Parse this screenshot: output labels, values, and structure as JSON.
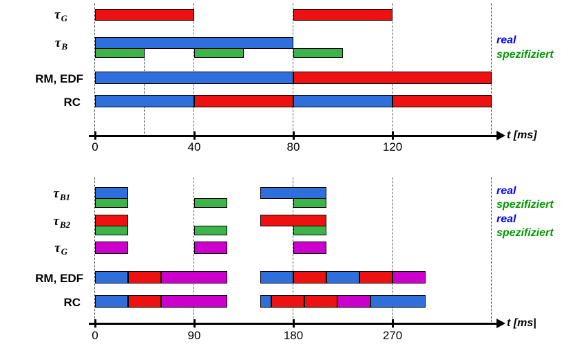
{
  "colors": {
    "red": "#ee1111",
    "blue": "#2e6fdb",
    "green": "#3cb44a",
    "magenta": "#cc00cc",
    "axis": "#000000",
    "real_label": "#0000ff",
    "spez_label": "#009900"
  },
  "diagrams": [
    {
      "id": "top",
      "axis": {
        "ticks_ms": [
          0,
          40,
          80,
          120
        ],
        "tick_labels": [
          "0",
          "40",
          "80",
          "120"
        ],
        "unit_label": "t [ms]"
      },
      "gridlines_ms": [
        0,
        40,
        80,
        120,
        160
      ],
      "minor_gridlines_ms": [
        20
      ],
      "legend": [
        {
          "text": "real",
          "color_key": "real_label"
        },
        {
          "text": "spezifiziert",
          "color_key": "spez_label"
        }
      ],
      "rows": [
        {
          "id": "tau-g",
          "label": {
            "base": "τ",
            "sub": "G"
          },
          "bars": [
            {
              "start": 0,
              "end": 40,
              "color": "red"
            },
            {
              "start": 80,
              "end": 120,
              "color": "red"
            }
          ]
        },
        {
          "id": "tau-b",
          "label": {
            "base": "τ",
            "sub": "B"
          },
          "bars": [
            {
              "start": 0,
              "end": 80,
              "color": "blue"
            }
          ],
          "spec_bars": [
            {
              "start": 0,
              "end": 20,
              "color": "green"
            },
            {
              "start": 40,
              "end": 60,
              "color": "green"
            },
            {
              "start": 80,
              "end": 100,
              "color": "green"
            }
          ]
        },
        {
          "id": "rm-edf",
          "label": {
            "text": "RM, EDF"
          },
          "bars": [
            {
              "start": 0,
              "end": 80,
              "color": "blue"
            },
            {
              "start": 80,
              "end": 160,
              "color": "red"
            }
          ]
        },
        {
          "id": "rc",
          "label": {
            "text": "RC"
          },
          "bars": [
            {
              "start": 0,
              "end": 40,
              "color": "blue"
            },
            {
              "start": 40,
              "end": 80,
              "color": "red"
            },
            {
              "start": 80,
              "end": 120,
              "color": "blue"
            },
            {
              "start": 120,
              "end": 160,
              "color": "red"
            }
          ]
        }
      ]
    },
    {
      "id": "bottom",
      "axis": {
        "ticks_ms": [
          0,
          90,
          180,
          270
        ],
        "tick_labels": [
          "0",
          "90",
          "180",
          "270"
        ],
        "unit_label": "t [ms|"
      },
      "gridlines_ms": [
        0,
        90,
        180,
        270,
        360
      ],
      "minor_gridlines_ms": [],
      "legend": [
        {
          "text": "real",
          "color_key": "real_label"
        },
        {
          "text": "spezifiziert",
          "color_key": "spez_label"
        },
        {
          "text": "real",
          "color_key": "real_label"
        },
        {
          "text": "spezifiziert",
          "color_key": "spez_label"
        }
      ],
      "rows": [
        {
          "id": "tau-b1",
          "label": {
            "base": "τ",
            "sub": "B1"
          },
          "bars": [
            {
              "start": 0,
              "end": 30,
              "color": "blue"
            },
            {
              "start": 150,
              "end": 210,
              "color": "blue"
            }
          ],
          "spec_bars": [
            {
              "start": 0,
              "end": 30,
              "color": "green"
            },
            {
              "start": 90,
              "end": 120,
              "color": "green"
            },
            {
              "start": 180,
              "end": 210,
              "color": "green"
            }
          ]
        },
        {
          "id": "tau-b2",
          "label": {
            "base": "τ",
            "sub": "B2"
          },
          "bars": [
            {
              "start": 0,
              "end": 30,
              "color": "red"
            },
            {
              "start": 150,
              "end": 210,
              "color": "red"
            }
          ],
          "spec_bars": [
            {
              "start": 0,
              "end": 30,
              "color": "green"
            },
            {
              "start": 90,
              "end": 120,
              "color": "green"
            },
            {
              "start": 180,
              "end": 210,
              "color": "green"
            }
          ]
        },
        {
          "id": "tau-g2",
          "label": {
            "base": "τ",
            "sub": "G"
          },
          "bars": [
            {
              "start": 0,
              "end": 30,
              "color": "magenta"
            },
            {
              "start": 90,
              "end": 120,
              "color": "magenta"
            },
            {
              "start": 180,
              "end": 210,
              "color": "magenta"
            }
          ]
        },
        {
          "id": "rm-edf2",
          "label": {
            "text": "RM, EDF"
          },
          "bars": [
            {
              "start": 0,
              "end": 30,
              "color": "blue"
            },
            {
              "start": 30,
              "end": 60,
              "color": "red"
            },
            {
              "start": 60,
              "end": 120,
              "color": "magenta"
            },
            {
              "start": 150,
              "end": 180,
              "color": "blue"
            },
            {
              "start": 180,
              "end": 210,
              "color": "red"
            },
            {
              "start": 210,
              "end": 240,
              "color": "blue"
            },
            {
              "start": 240,
              "end": 270,
              "color": "red"
            },
            {
              "start": 270,
              "end": 300,
              "color": "magenta"
            }
          ]
        },
        {
          "id": "rc2",
          "label": {
            "text": "RC"
          },
          "bars": [
            {
              "start": 0,
              "end": 30,
              "color": "blue"
            },
            {
              "start": 30,
              "end": 60,
              "color": "red"
            },
            {
              "start": 60,
              "end": 120,
              "color": "magenta"
            },
            {
              "start": 150,
              "end": 160,
              "color": "blue"
            },
            {
              "start": 160,
              "end": 190,
              "color": "red"
            },
            {
              "start": 190,
              "end": 220,
              "color": "red"
            },
            {
              "start": 220,
              "end": 250,
              "color": "magenta"
            },
            {
              "start": 250,
              "end": 300,
              "color": "blue"
            }
          ]
        }
      ]
    }
  ]
}
